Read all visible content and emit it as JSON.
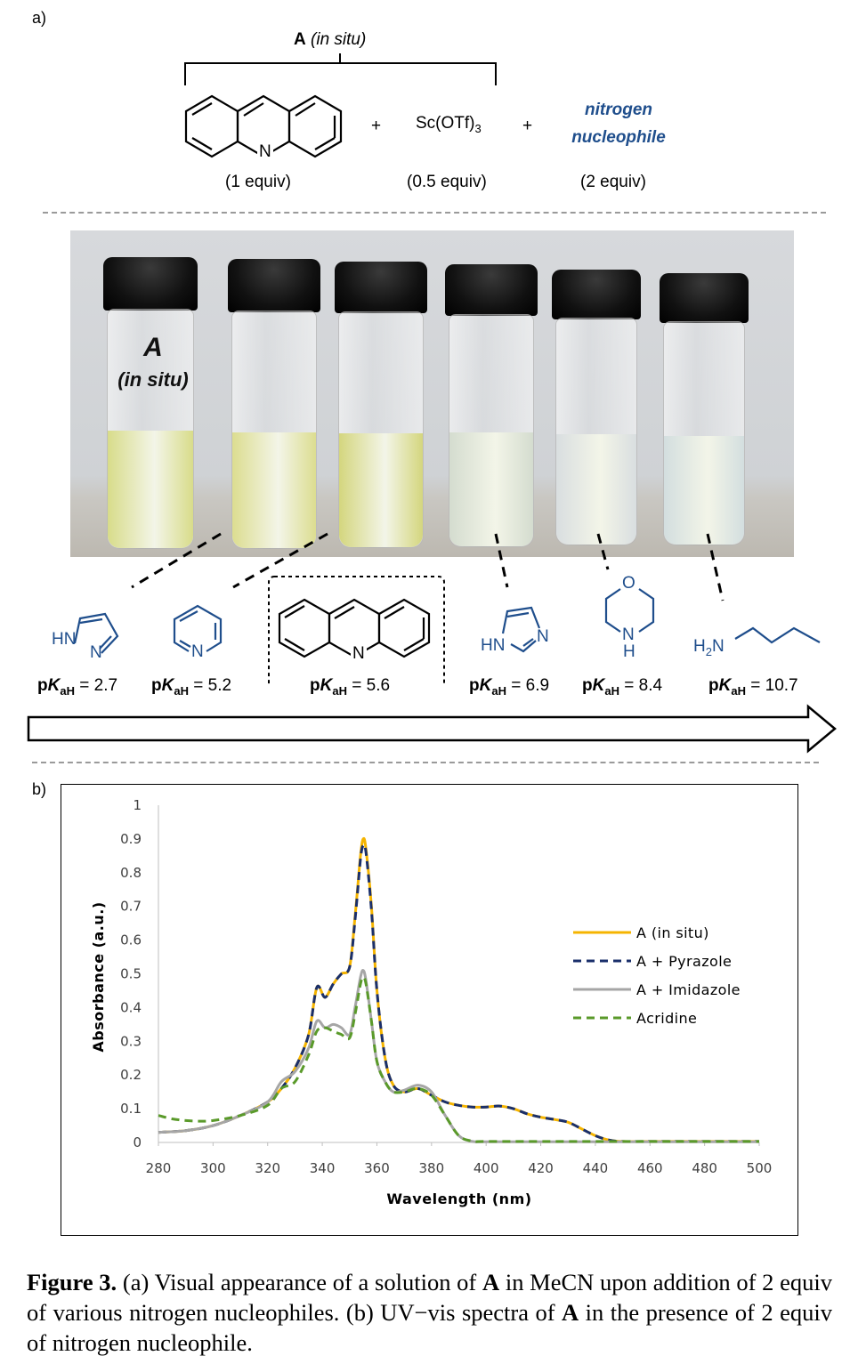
{
  "panel_a": {
    "label": "a)",
    "bracket_label_bold": "A",
    "bracket_label_italic": "(in situ)",
    "plus": "+",
    "acridine_N": "N",
    "acridine_equiv": "(1 equiv)",
    "sc_text": "Sc(OTf)",
    "sc_sub": "3",
    "sc_equiv": "(0.5 equiv)",
    "nuc_line1": "nitrogen",
    "nuc_line2": "nucleophile",
    "nuc_equiv": "(2 equiv)",
    "vial_label_line1": "A",
    "vial_label_line2": "(in situ)",
    "vial_colors": [
      "#d8dc8a",
      "#dcdd90",
      "#d4d67e",
      "#d4dccf",
      "#d9dee0",
      "#d3dedf"
    ],
    "nucleophiles": [
      {
        "atoms": [
          "HN",
          "N"
        ],
        "pka_prefix": "p",
        "pka_K": "K",
        "pka_sub": "aH",
        "pka_value": " = 2.7"
      },
      {
        "atoms": [
          "N"
        ],
        "pka_prefix": "p",
        "pka_K": "K",
        "pka_sub": "aH",
        "pka_value": " = 5.2"
      },
      {
        "atoms": [
          "N"
        ],
        "pka_prefix": "p",
        "pka_K": "K",
        "pka_sub": "aH",
        "pka_value": " = 5.6"
      },
      {
        "atoms": [
          "HN",
          "N"
        ],
        "pka_prefix": "p",
        "pka_K": "K",
        "pka_sub": "aH",
        "pka_value": " = 6.9"
      },
      {
        "atoms": [
          "O",
          "N",
          "H"
        ],
        "pka_prefix": "p",
        "pka_K": "K",
        "pka_sub": "aH",
        "pka_value": " = 8.4"
      },
      {
        "atoms": [
          "H",
          "2",
          "N"
        ],
        "pka_prefix": "p",
        "pka_K": "K",
        "pka_sub": "aH",
        "pka_value": " = 10.7"
      }
    ],
    "structure_color": "#1f4e8c"
  },
  "panel_b": {
    "label": "b)"
  },
  "chart_data": {
    "type": "line",
    "xlabel": "Wavelength (nm)",
    "ylabel": "Absorbance (a.u.)",
    "xlim": [
      280,
      500
    ],
    "ylim": [
      0,
      1
    ],
    "xticks": [
      280,
      300,
      320,
      340,
      360,
      380,
      400,
      420,
      440,
      460,
      480,
      500
    ],
    "yticks": [
      0,
      0.1,
      0.2,
      0.3,
      0.4,
      0.5,
      0.6,
      0.7,
      0.8,
      0.9,
      1
    ],
    "yticklabels": [
      "0",
      "0.1",
      "0.2",
      "0.3",
      "0.4",
      "0.5",
      "0.6",
      "0.7",
      "0.8",
      "0.9",
      "1"
    ],
    "grid": false,
    "legend_position": "right",
    "series": [
      {
        "name": "A (in situ)",
        "color": "#f5b400",
        "dash": "solid",
        "x": [
          280,
          290,
          300,
          310,
          320,
          325,
          330,
          335,
          338,
          341,
          344,
          347,
          350,
          352,
          354,
          355,
          356,
          358,
          360,
          363,
          366,
          370,
          375,
          380,
          385,
          390,
          395,
          400,
          405,
          410,
          415,
          420,
          425,
          430,
          435,
          440,
          445,
          450,
          460,
          480,
          500
        ],
        "y": [
          0.03,
          0.035,
          0.05,
          0.08,
          0.12,
          0.16,
          0.22,
          0.32,
          0.46,
          0.43,
          0.47,
          0.5,
          0.52,
          0.67,
          0.85,
          0.9,
          0.87,
          0.7,
          0.45,
          0.25,
          0.17,
          0.15,
          0.16,
          0.14,
          0.12,
          0.11,
          0.105,
          0.105,
          0.108,
          0.1,
          0.085,
          0.075,
          0.068,
          0.06,
          0.04,
          0.02,
          0.007,
          0.003,
          0.003,
          0.003,
          0.003
        ]
      },
      {
        "name": "A + Pyrazole",
        "color": "#1a2f6b",
        "dash": "dashed",
        "x": [
          280,
          290,
          300,
          310,
          320,
          325,
          330,
          335,
          338,
          341,
          344,
          347,
          350,
          352,
          354,
          355,
          356,
          358,
          360,
          363,
          366,
          370,
          375,
          380,
          385,
          390,
          395,
          400,
          405,
          410,
          415,
          420,
          425,
          430,
          435,
          440,
          445,
          450,
          460,
          480,
          500
        ],
        "y": [
          0.03,
          0.035,
          0.05,
          0.08,
          0.12,
          0.16,
          0.22,
          0.32,
          0.46,
          0.43,
          0.47,
          0.5,
          0.52,
          0.66,
          0.84,
          0.88,
          0.86,
          0.69,
          0.45,
          0.25,
          0.17,
          0.15,
          0.16,
          0.14,
          0.12,
          0.11,
          0.105,
          0.105,
          0.108,
          0.1,
          0.085,
          0.075,
          0.068,
          0.06,
          0.04,
          0.02,
          0.007,
          0.003,
          0.003,
          0.003,
          0.003
        ]
      },
      {
        "name": "A + Imidazole",
        "color": "#a6a6a6",
        "dash": "solid",
        "x": [
          280,
          290,
          300,
          310,
          320,
          325,
          330,
          335,
          338,
          341,
          344,
          347,
          350,
          352,
          354,
          355,
          356,
          358,
          360,
          363,
          366,
          370,
          375,
          380,
          385,
          390,
          395,
          400,
          420,
          450,
          500
        ],
        "y": [
          0.03,
          0.035,
          0.05,
          0.08,
          0.12,
          0.18,
          0.21,
          0.28,
          0.36,
          0.34,
          0.35,
          0.34,
          0.32,
          0.4,
          0.49,
          0.51,
          0.48,
          0.36,
          0.24,
          0.18,
          0.15,
          0.155,
          0.17,
          0.15,
          0.08,
          0.02,
          0.003,
          0.002,
          0.002,
          0.002,
          0.002
        ]
      },
      {
        "name": "Acridine",
        "color": "#5a9a2a",
        "dash": "dashed",
        "x": [
          280,
          285,
          290,
          295,
          300,
          310,
          320,
          325,
          330,
          335,
          338,
          341,
          344,
          347,
          350,
          352,
          354,
          355,
          356,
          358,
          360,
          363,
          366,
          370,
          375,
          380,
          385,
          390,
          395,
          400,
          420,
          450,
          500
        ],
        "y": [
          0.08,
          0.07,
          0.065,
          0.063,
          0.065,
          0.08,
          0.11,
          0.16,
          0.18,
          0.26,
          0.33,
          0.34,
          0.33,
          0.32,
          0.31,
          0.38,
          0.47,
          0.49,
          0.47,
          0.36,
          0.24,
          0.18,
          0.15,
          0.15,
          0.16,
          0.14,
          0.08,
          0.02,
          0.004,
          0.003,
          0.003,
          0.003,
          0.003
        ]
      }
    ]
  },
  "caption": {
    "bold": "Figure 3.",
    "text1": " (a) Visual appearance of a solution of ",
    "A1": "A",
    "text2": " in MeCN upon addition of 2 equiv of various nitrogen nucleophiles. (b) UV−vis spectra of ",
    "A2": "A",
    "text3": " in the presence of 2 equiv of nitrogen nucleophile."
  }
}
